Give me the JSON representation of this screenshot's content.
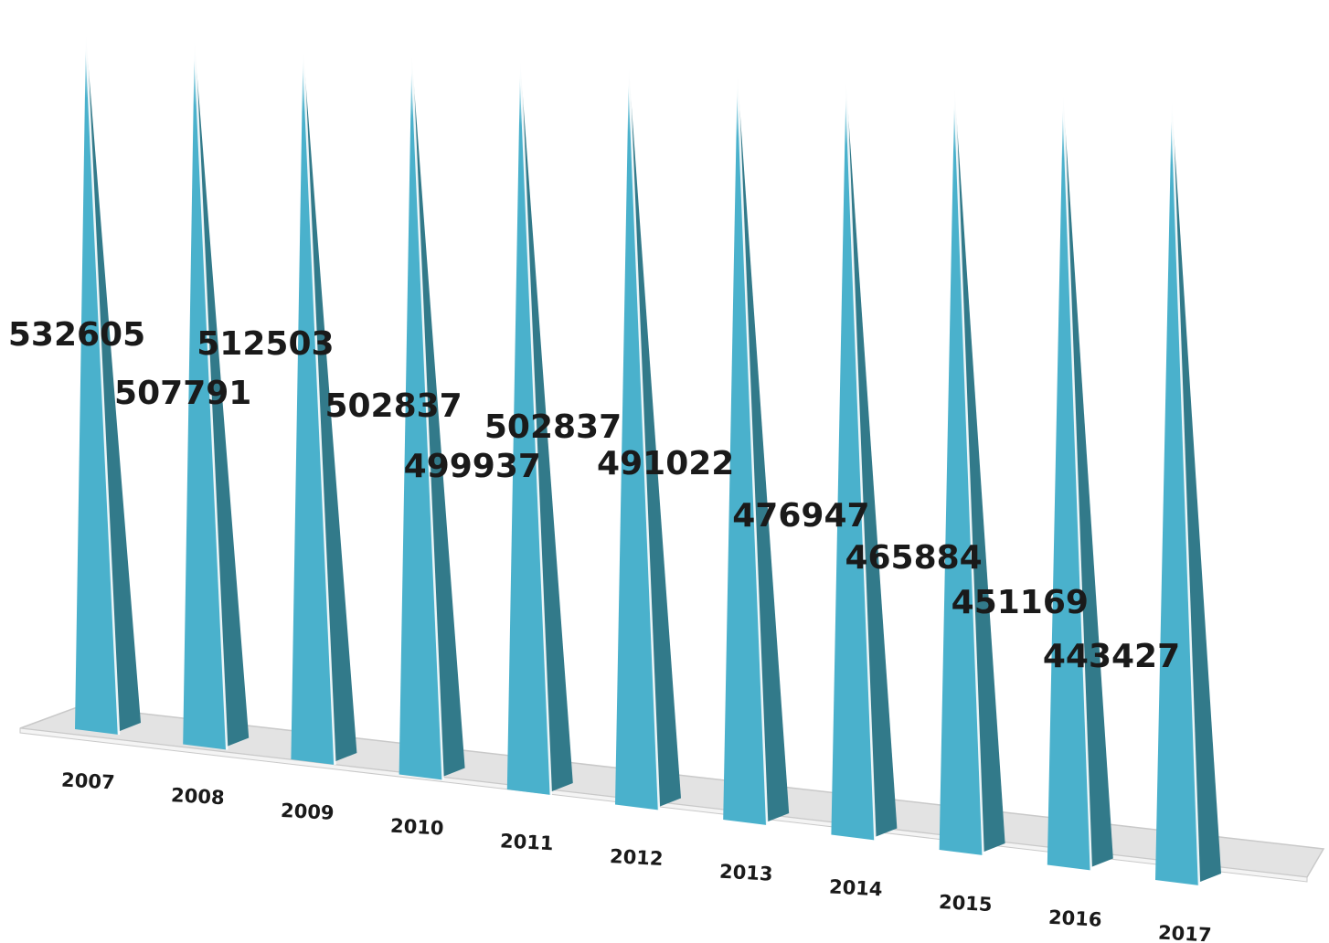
{
  "chart_data": {
    "type": "bar",
    "style": "3d-cone",
    "categories": [
      "2007",
      "2008",
      "2009",
      "2010",
      "2011",
      "2012",
      "2013",
      "2014",
      "2015",
      "2016",
      "2017"
    ],
    "values": [
      532605,
      507791,
      512503,
      502837,
      499937,
      502837,
      491022,
      476947,
      465884,
      451169,
      443427
    ],
    "title": "",
    "xlabel": "",
    "ylabel": "",
    "grid": false,
    "legend": "none",
    "colors": {
      "front": "#4ab1cc",
      "side": "#327a8a",
      "floor": "#e3e3e3",
      "label": "#1a1a1a"
    }
  }
}
